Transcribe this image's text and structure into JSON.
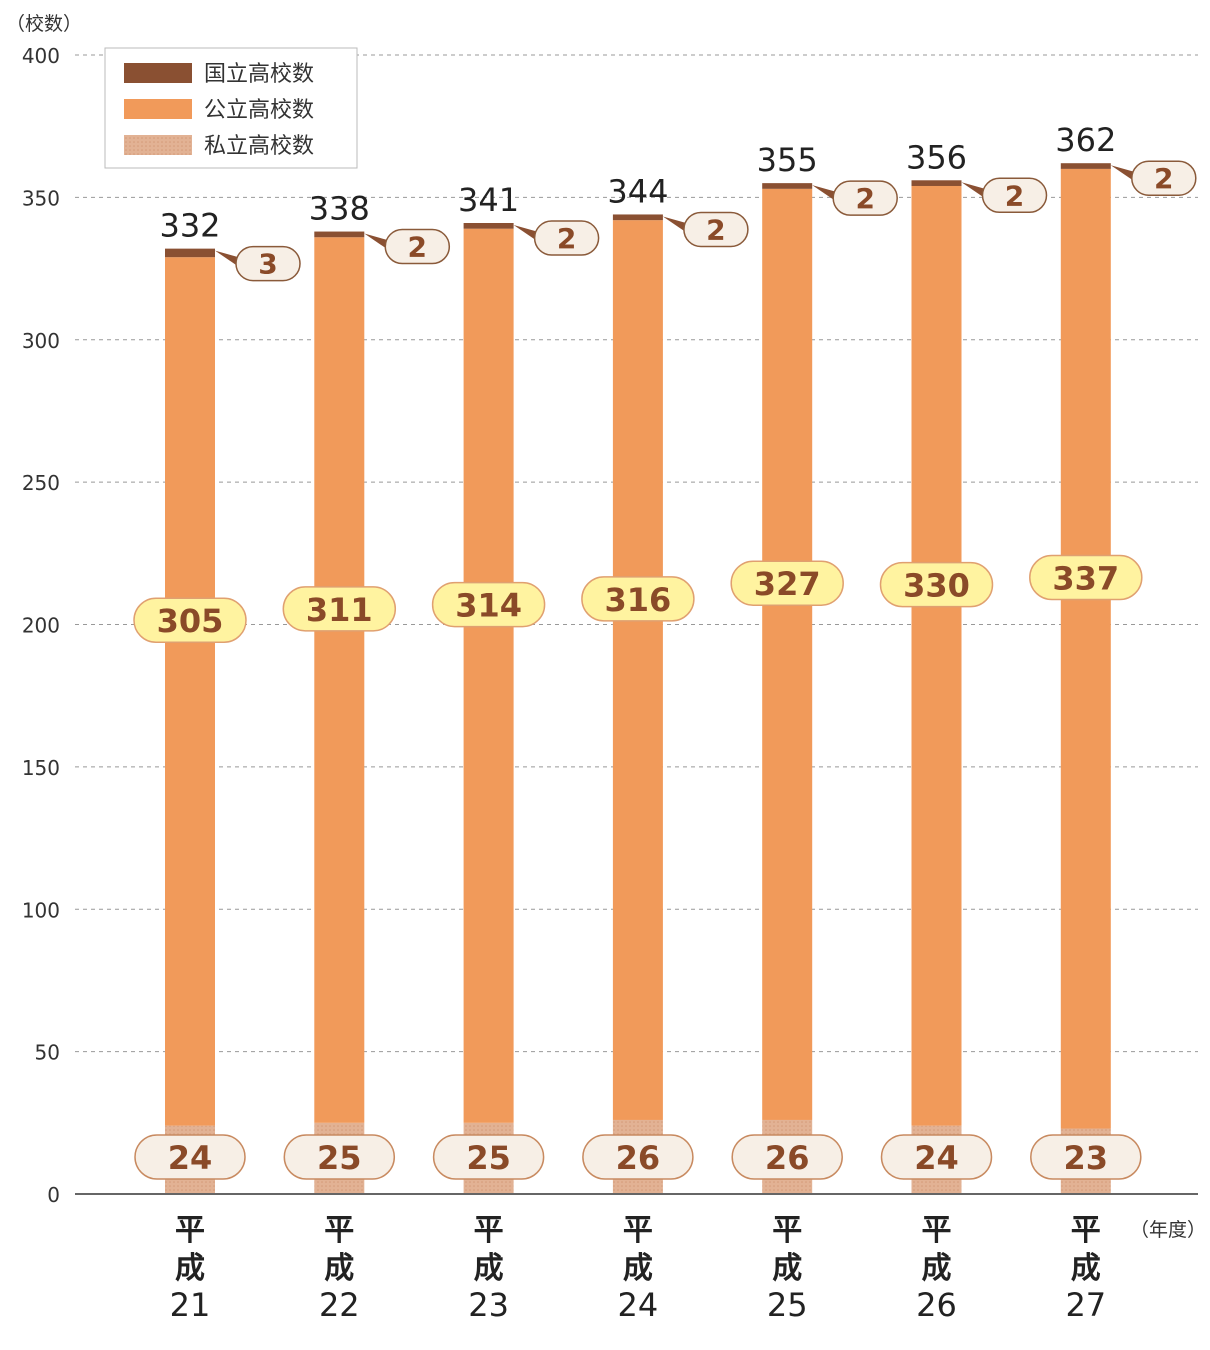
{
  "chart_data": {
    "type": "bar",
    "stacked": true,
    "title": "",
    "ylabel": "（校数）",
    "xlabel": "（年度）",
    "ylim": [
      0,
      400
    ],
    "yticks": [
      0,
      50,
      100,
      150,
      200,
      250,
      300,
      350,
      400
    ],
    "grid": true,
    "legend_position": "top-left",
    "era_label": "平成",
    "categories": [
      "21",
      "22",
      "23",
      "24",
      "25",
      "26",
      "27"
    ],
    "series": [
      {
        "name": "私立高校数",
        "color": "#e2b294",
        "values": [
          24,
          25,
          25,
          26,
          26,
          24,
          23
        ]
      },
      {
        "name": "公立高校数",
        "color": "#f19a5a",
        "values": [
          305,
          311,
          314,
          316,
          327,
          330,
          337
        ]
      },
      {
        "name": "国立高校数",
        "color": "#8a5032",
        "values": [
          3,
          2,
          2,
          2,
          2,
          2,
          2
        ]
      }
    ],
    "totals": [
      332,
      338,
      341,
      344,
      355,
      356,
      362
    ],
    "colors": {
      "public_label_fill": "#fff3a0",
      "public_label_stroke": "#e0a070",
      "private_label_fill": "#f7efe6",
      "private_label_stroke": "#c88a60",
      "national_label_fill": "#f7efe6",
      "label_text": "#8a4a28"
    }
  }
}
